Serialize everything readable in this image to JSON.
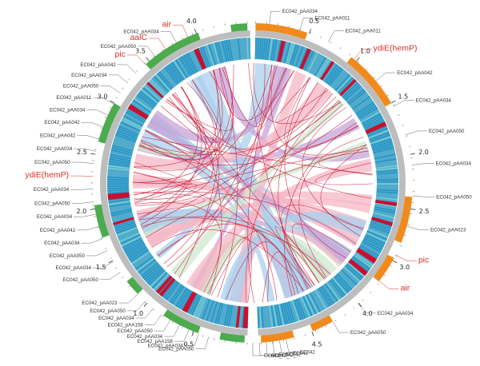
{
  "diagram": {
    "type": "circos-genome-comparison",
    "colors": {
      "genome_left": "#4bab4d",
      "genome_right": "#f08a1c",
      "backbone": "#bdbdbd",
      "ring_blue": "#2f8fc9",
      "ring_cyan": "#45b4c8",
      "link_red": "#c8102e",
      "ribbon_blue": "#a9d0ee",
      "ribbon_pink": "#f6b5c4",
      "ribbon_green": "#cfe8cf",
      "ribbon_purple": "#c7a4d8",
      "label_red": "#d9302a"
    },
    "right_ticks": [
      {
        "text": "0.5"
      },
      {
        "text": "1.0"
      },
      {
        "text": "1.5"
      },
      {
        "text": "2.0"
      },
      {
        "text": "2.5"
      },
      {
        "text": "3.0"
      },
      {
        "text": "4.0"
      },
      {
        "text": "4.5"
      }
    ],
    "left_ticks": [
      {
        "text": "0.5"
      },
      {
        "text": "1.0"
      },
      {
        "text": "1.5"
      },
      {
        "text": "2.0"
      },
      {
        "text": "2.5"
      },
      {
        "text": "3.0"
      },
      {
        "text": "3.5"
      },
      {
        "text": "4.0"
      }
    ],
    "labels_right": [
      {
        "text": "EC042_pAA034"
      },
      {
        "text": "EC042_pAA011"
      },
      {
        "text": "EC042_pAA011"
      },
      {
        "text": "ydiE(hemP)",
        "highlight": true
      },
      {
        "text": "EC042_pAA042"
      },
      {
        "text": "EC042_pAA034"
      },
      {
        "text": "EC042_pAA050"
      },
      {
        "text": "EC042_pAA034"
      },
      {
        "text": "EC042_pAA050"
      },
      {
        "text": "EC042_pAA023"
      },
      {
        "text": "pic",
        "highlight": true
      },
      {
        "text": "air",
        "highlight": true
      },
      {
        "text": "EC042_pAA034"
      },
      {
        "text": "EC042_pAA050"
      }
    ],
    "labels_left": [
      {
        "text": "EC042_pAA050"
      },
      {
        "text": "EC042_pAA034"
      },
      {
        "text": "EC042_pAA050"
      },
      {
        "text": "EC042_pAA034"
      },
      {
        "text": "EC042_pAA042"
      },
      {
        "text": "EC042_pAA034"
      },
      {
        "text": "EC042_pAA050"
      },
      {
        "text": "EC042_pAA034"
      },
      {
        "text": "ydiE(hemP)",
        "highlight": true
      },
      {
        "text": "EC042_pAA050"
      },
      {
        "text": "EC042_pAA034"
      },
      {
        "text": "EC042_pAA042"
      },
      {
        "text": "EC042_pAA042"
      },
      {
        "text": "EC042_pAA034"
      },
      {
        "text": "EC042_pAA011"
      },
      {
        "text": "EC042_pAA050"
      },
      {
        "text": "EC042_pAA034"
      },
      {
        "text": "EC042_pAA042"
      },
      {
        "text": "pic",
        "highlight": true
      },
      {
        "text": "EC042_pAA050"
      },
      {
        "text": "aalC",
        "highlight": true
      },
      {
        "text": "EC042_pAA034"
      },
      {
        "text": "air",
        "highlight": true
      }
    ],
    "labels_bottom_left": [
      {
        "text": "EC042_pAA050"
      },
      {
        "text": "EC042_pAA034"
      },
      {
        "text": "EC042_pAA158"
      },
      {
        "text": "EC042_pAA034"
      },
      {
        "text": "EC042_pAA050"
      },
      {
        "text": "EC042_pAA158"
      },
      {
        "text": "EC042_pAA034"
      },
      {
        "text": "EC042_pAA050"
      },
      {
        "text": "EC042_pAA023"
      }
    ],
    "labels_bottom_right": [
      {
        "text": "EC042"
      },
      {
        "text": "EC042"
      },
      {
        "text": "EC042"
      },
      {
        "text": "EC042_"
      },
      {
        "text": "EC042_"
      },
      {
        "text": "EC042_"
      }
    ]
  }
}
